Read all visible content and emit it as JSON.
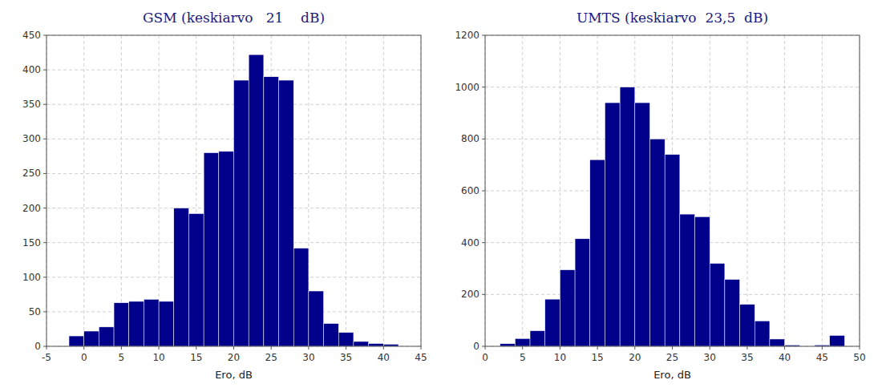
{
  "chart_data": [
    {
      "type": "histogram",
      "title": "GSM (keskiarvo   21    dB)",
      "x_label": "Ero, dB",
      "x": [
        -2,
        0,
        2,
        4,
        6,
        8,
        10,
        12,
        14,
        16,
        18,
        20,
        22,
        24,
        26,
        28,
        30,
        32,
        34,
        36,
        38,
        40
      ],
      "bin_width": 2,
      "values": [
        15,
        22,
        28,
        63,
        65,
        68,
        65,
        200,
        192,
        280,
        282,
        385,
        422,
        390,
        385,
        142,
        80,
        33,
        20,
        7,
        4,
        3
      ],
      "color": "#00008B",
      "xlim": [
        -5,
        45
      ],
      "xticks": [
        -5,
        0,
        5,
        10,
        15,
        20,
        25,
        30,
        35,
        40,
        45
      ],
      "ylim": [
        0,
        450
      ],
      "yticks": [
        0,
        50,
        100,
        150,
        200,
        250,
        300,
        350,
        400,
        450
      ],
      "grid": true
    },
    {
      "type": "histogram",
      "title": "UMTS (keskiarvo  23,5  dB)",
      "x_label": "Ero, dB",
      "x": [
        2,
        4,
        6,
        8,
        10,
        12,
        14,
        16,
        18,
        20,
        22,
        24,
        26,
        28,
        30,
        32,
        34,
        36,
        38,
        40,
        44,
        46
      ],
      "bin_width": 2,
      "values": [
        10,
        30,
        60,
        182,
        295,
        415,
        720,
        940,
        1000,
        940,
        800,
        740,
        510,
        500,
        320,
        258,
        162,
        98,
        28,
        5,
        5,
        42
      ],
      "color": "#00008B",
      "xlim": [
        0,
        50
      ],
      "xticks": [
        0,
        5,
        10,
        15,
        20,
        25,
        30,
        35,
        40,
        45,
        50
      ],
      "ylim": [
        0,
        1200
      ],
      "yticks": [
        0,
        200,
        400,
        600,
        800,
        1000,
        1200
      ],
      "grid": true
    }
  ]
}
